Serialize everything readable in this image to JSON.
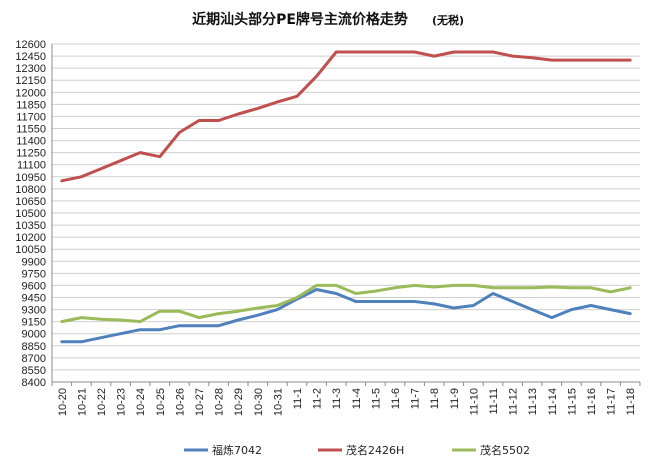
{
  "chart_data": {
    "type": "line",
    "title": "近期汕头部分PE牌号主流价格走势",
    "subtitle": "(无税)",
    "categories": [
      "10-20",
      "10-21",
      "10-22",
      "10-23",
      "10-24",
      "10-25",
      "10-26",
      "10-27",
      "10-28",
      "10-29",
      "10-30",
      "10-31",
      "11-1",
      "11-2",
      "11-3",
      "11-4",
      "11-5",
      "11-6",
      "11-7",
      "11-8",
      "11-9",
      "11-10",
      "11-11",
      "11-12",
      "11-13",
      "11-14",
      "11-15",
      "11-16",
      "11-17",
      "11-18"
    ],
    "yticks": [
      8400,
      8550,
      8700,
      8850,
      9000,
      9150,
      9300,
      9450,
      9600,
      9750,
      9900,
      10050,
      10200,
      10350,
      10500,
      10650,
      10800,
      10950,
      11100,
      11250,
      11400,
      11550,
      11700,
      11850,
      12000,
      12150,
      12300,
      12450,
      12600
    ],
    "ylim": [
      8400,
      12600
    ],
    "grid": true,
    "legend_position": "bottom",
    "series": [
      {
        "name": "福炼7042",
        "color": "#4f81bd",
        "values": [
          8900,
          8900,
          8950,
          9000,
          9050,
          9050,
          9100,
          9100,
          9100,
          9170,
          9230,
          9300,
          9430,
          9550,
          9500,
          9400,
          9400,
          9400,
          9400,
          9370,
          9320,
          9350,
          9500,
          9400,
          9300,
          9200,
          9300,
          9350,
          9300,
          9250
        ]
      },
      {
        "name": "茂名2426H",
        "color": "#c0504d",
        "values": [
          10900,
          10950,
          11050,
          11150,
          11250,
          11200,
          11500,
          11650,
          11650,
          11730,
          11800,
          11880,
          11950,
          12200,
          12500,
          12500,
          12500,
          12500,
          12500,
          12450,
          12500,
          12500,
          12500,
          12450,
          12430,
          12400,
          12400,
          12400,
          12400,
          12400
        ]
      },
      {
        "name": "茂名5502",
        "color": "#9bbb59",
        "values": [
          9150,
          9200,
          9180,
          9170,
          9150,
          9280,
          9280,
          9200,
          9250,
          9280,
          9320,
          9350,
          9450,
          9600,
          9600,
          9500,
          9530,
          9570,
          9600,
          9580,
          9600,
          9600,
          9570,
          9570,
          9570,
          9580,
          9570,
          9570,
          9520,
          9570
        ]
      }
    ]
  }
}
